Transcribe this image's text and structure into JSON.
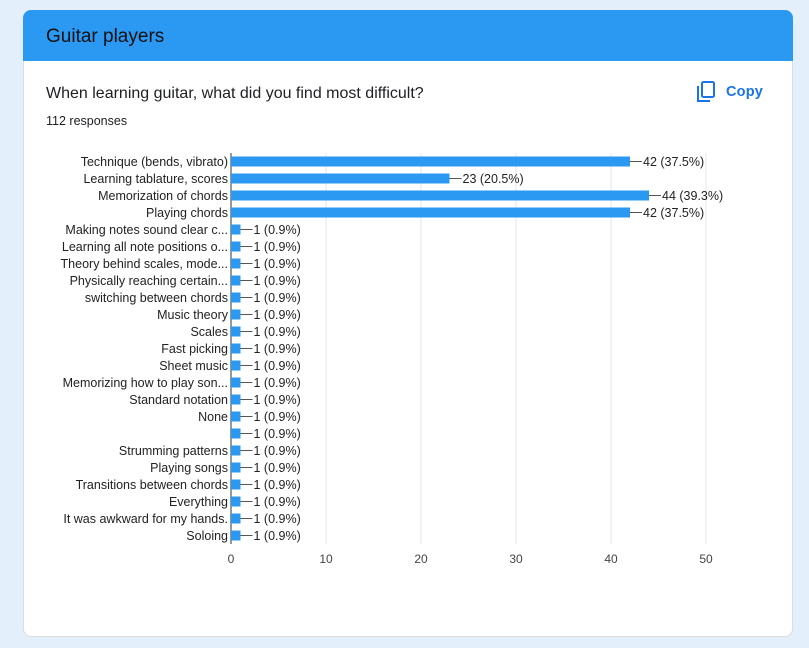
{
  "header": {
    "title": "Guitar players"
  },
  "question": {
    "title": "When learning guitar, what did you find most difficult?",
    "responses": "112 responses",
    "copy_label": "Copy"
  },
  "colors": {
    "bar": "#2b98f2",
    "header": "#2b98f2",
    "accent": "#1a73e8"
  },
  "icons": {
    "copy": "copy-icon"
  },
  "chart_data": {
    "type": "bar",
    "orientation": "horizontal",
    "categories": [
      "Technique (bends, vibrato)",
      "Learning tablature, scores",
      "Memorization of chords",
      "Playing chords",
      "Making notes sound clear c...",
      "Learning all note positions o...",
      "Theory behind scales, mode...",
      "Physically reaching certain...",
      "switching between chords",
      "Music theory",
      "Scales",
      "Fast picking",
      "Sheet music",
      "Memorizing how to play son...",
      "Standard notation",
      "None",
      "",
      "Strumming patterns",
      "Playing songs",
      "Transitions between chords",
      "Everything",
      "It was awkward for my hands.",
      "Soloing"
    ],
    "values": [
      42,
      23,
      44,
      42,
      1,
      1,
      1,
      1,
      1,
      1,
      1,
      1,
      1,
      1,
      1,
      1,
      1,
      1,
      1,
      1,
      1,
      1,
      1
    ],
    "data_labels": [
      "42 (37.5%)",
      "23 (20.5%)",
      "44 (39.3%)",
      "42 (37.5%)",
      "1 (0.9%)",
      "1 (0.9%)",
      "1 (0.9%)",
      "1 (0.9%)",
      "1 (0.9%)",
      "1 (0.9%)",
      "1 (0.9%)",
      "1 (0.9%)",
      "1 (0.9%)",
      "1 (0.9%)",
      "1 (0.9%)",
      "1 (0.9%)",
      "1 (0.9%)",
      "1 (0.9%)",
      "1 (0.9%)",
      "1 (0.9%)",
      "1 (0.9%)",
      "1 (0.9%)",
      "1 (0.9%)"
    ],
    "x_ticks": [
      0,
      10,
      20,
      30,
      40,
      50
    ],
    "xlim": [
      0,
      50
    ],
    "grid": true
  }
}
